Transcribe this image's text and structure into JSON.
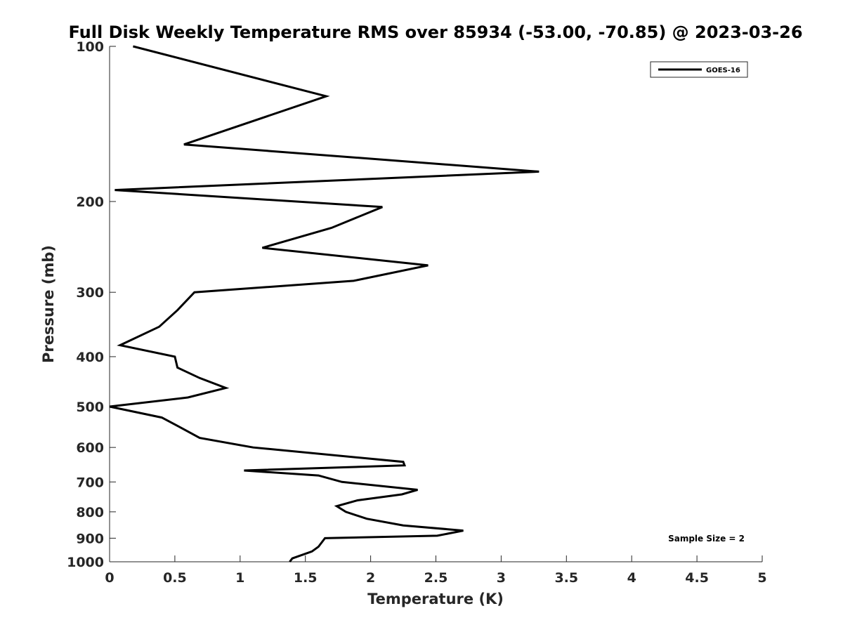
{
  "chart_data": {
    "type": "line",
    "title": "Full Disk Weekly Temperature RMS over 85934 (-53.00, -70.85) @ 2023-03-26",
    "xlabel": "Temperature (K)",
    "ylabel": "Pressure (mb)",
    "xlim": [
      0,
      5
    ],
    "ylim": [
      100,
      1000
    ],
    "y_scale": "log",
    "y_reversed": true,
    "xticks": [
      "0",
      "0.5",
      "1",
      "1.5",
      "2",
      "2.5",
      "3",
      "3.5",
      "4",
      "4.5",
      "5"
    ],
    "yticks": [
      "100",
      "200",
      "300",
      "400",
      "500",
      "600",
      "700",
      "800",
      "900",
      "1000"
    ],
    "xtick_values": [
      0,
      0.5,
      1,
      1.5,
      2,
      2.5,
      3,
      3.5,
      4,
      4.5,
      5
    ],
    "ytick_values": [
      100,
      200,
      300,
      400,
      500,
      600,
      700,
      800,
      900,
      1000
    ],
    "grid": false,
    "legend_position": "top-right",
    "annotation": "Sample Size = 2",
    "series": [
      {
        "name": "GOES-16",
        "color": "#000000",
        "points": [
          [
            0.18,
            100
          ],
          [
            1.66,
            125
          ],
          [
            0.57,
            155
          ],
          [
            3.29,
            175
          ],
          [
            0.04,
            190
          ],
          [
            2.09,
            205
          ],
          [
            1.7,
            225
          ],
          [
            1.17,
            246
          ],
          [
            2.44,
            266
          ],
          [
            1.87,
            285
          ],
          [
            0.65,
            300
          ],
          [
            0.52,
            325
          ],
          [
            0.38,
            350
          ],
          [
            0.08,
            380
          ],
          [
            0.5,
            400
          ],
          [
            0.52,
            420
          ],
          [
            0.69,
            440
          ],
          [
            0.89,
            460
          ],
          [
            0.6,
            480
          ],
          [
            0.0,
            500
          ],
          [
            0.4,
            525
          ],
          [
            0.55,
            550
          ],
          [
            0.69,
            575
          ],
          [
            1.1,
            600
          ],
          [
            2.25,
            640
          ],
          [
            2.26,
            650
          ],
          [
            1.03,
            665
          ],
          [
            1.6,
            680
          ],
          [
            1.78,
            700
          ],
          [
            2.36,
            725
          ],
          [
            2.24,
            740
          ],
          [
            1.9,
            760
          ],
          [
            1.74,
            780
          ],
          [
            1.81,
            800
          ],
          [
            1.97,
            825
          ],
          [
            2.25,
            850
          ],
          [
            2.71,
            870
          ],
          [
            2.51,
            890
          ],
          [
            1.65,
            900
          ],
          [
            1.6,
            935
          ],
          [
            1.55,
            955
          ],
          [
            1.4,
            985
          ],
          [
            1.38,
            1000
          ]
        ]
      }
    ]
  }
}
